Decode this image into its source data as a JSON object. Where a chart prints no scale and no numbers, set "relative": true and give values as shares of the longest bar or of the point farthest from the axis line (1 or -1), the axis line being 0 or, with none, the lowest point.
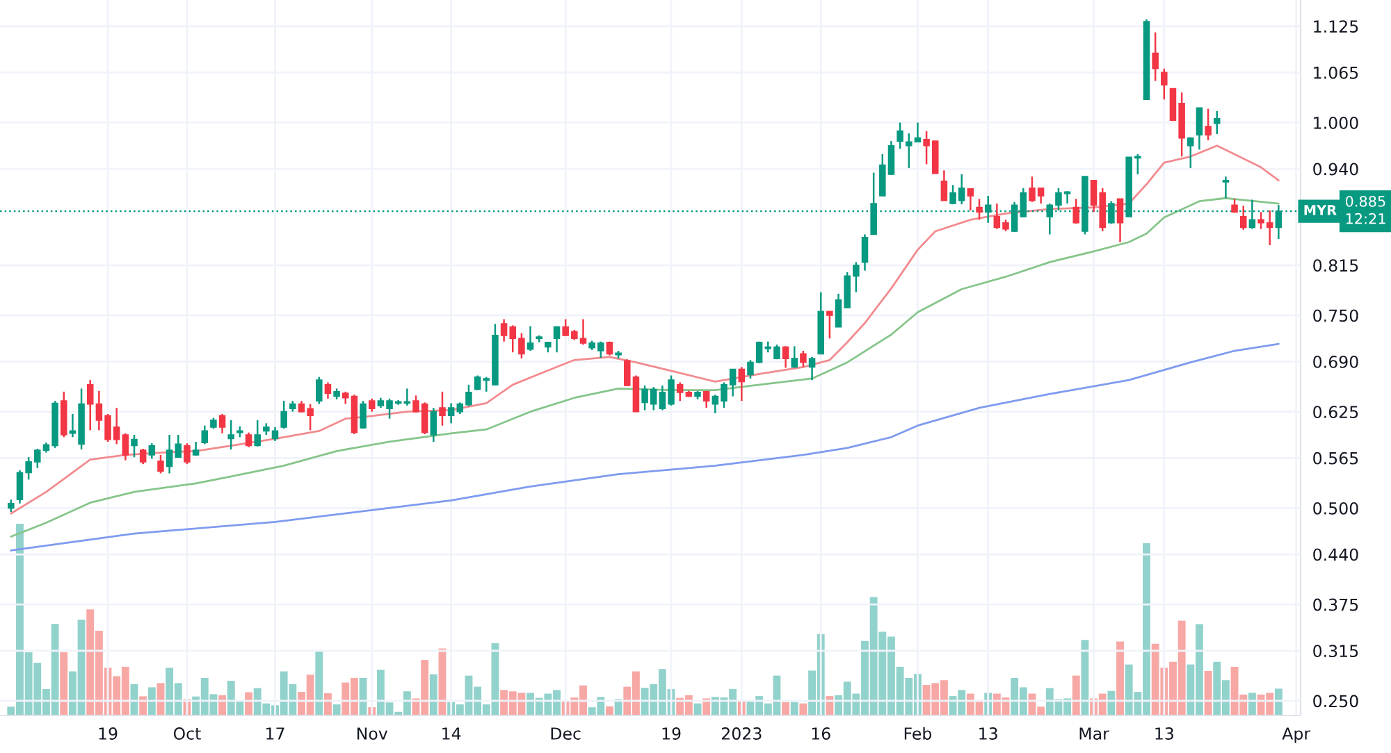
{
  "chart_data": [
    {
      "type": "candlestick",
      "categories": [
        null,
        null,
        null,
        null,
        null,
        null,
        null,
        null,
        null,
        null,
        null,
        "19",
        null,
        null,
        null,
        null,
        null,
        null,
        null,
        null,
        "Oct",
        null,
        null,
        null,
        null,
        null,
        null,
        null,
        null,
        null,
        "17",
        null,
        null,
        null,
        null,
        null,
        null,
        null,
        null,
        null,
        null,
        "Nov",
        null,
        null,
        null,
        null,
        null,
        null,
        null,
        null,
        "14",
        null,
        null,
        null,
        null,
        null,
        null,
        null,
        null,
        null,
        null,
        null,
        null,
        "Dec",
        null,
        null,
        null,
        null,
        null,
        null,
        null,
        null,
        null,
        null,
        null,
        "19",
        null,
        null,
        null,
        null,
        null,
        null,
        null,
        "2023",
        null,
        null,
        null,
        null,
        null,
        null,
        null,
        null,
        "16",
        null,
        null,
        null,
        null,
        null,
        null,
        null,
        null,
        null,
        null,
        "Feb",
        null,
        null,
        null,
        null,
        null,
        null,
        null,
        "13",
        null,
        null,
        null,
        null,
        null,
        null,
        null,
        null,
        null,
        null,
        null,
        "Mar",
        null,
        null,
        null,
        null,
        null,
        null,
        null,
        "13",
        null,
        null,
        null,
        null,
        null,
        null,
        null,
        null,
        null,
        null,
        null,
        null,
        null,
        null,
        "Apr"
      ],
      "ohlc": [
        [
          0.5,
          0.511,
          0.495,
          0.506
        ],
        [
          0.511,
          0.549,
          0.506,
          0.546
        ],
        [
          0.546,
          0.566,
          0.537,
          0.56
        ],
        [
          0.56,
          0.577,
          0.552,
          0.575
        ],
        [
          0.575,
          0.585,
          0.572,
          0.582
        ],
        [
          0.581,
          0.639,
          0.578,
          0.636
        ],
        [
          0.639,
          0.651,
          0.592,
          0.595
        ],
        [
          0.597,
          0.622,
          0.592,
          0.6
        ],
        [
          0.583,
          0.655,
          0.576,
          0.635
        ],
        [
          0.66,
          0.666,
          0.601,
          0.635
        ],
        [
          0.635,
          0.652,
          0.601,
          0.614
        ],
        [
          0.62,
          0.622,
          0.586,
          0.589
        ],
        [
          0.605,
          0.63,
          0.583,
          0.589
        ],
        [
          0.595,
          0.597,
          0.562,
          0.569
        ],
        [
          0.581,
          0.595,
          0.566,
          0.589
        ],
        [
          0.575,
          0.577,
          0.557,
          0.56
        ],
        [
          0.569,
          0.584,
          0.564,
          0.581
        ],
        [
          0.561,
          0.569,
          0.545,
          0.548
        ],
        [
          0.554,
          0.595,
          0.545,
          0.575
        ],
        [
          0.566,
          0.595,
          0.566,
          0.583
        ],
        [
          0.581,
          0.584,
          0.557,
          0.56
        ],
        [
          0.569,
          0.586,
          0.568,
          0.575
        ],
        [
          0.585,
          0.607,
          0.583,
          0.6
        ],
        [
          0.605,
          0.617,
          0.603,
          0.614
        ],
        [
          0.62,
          0.622,
          0.597,
          0.605
        ],
        [
          0.59,
          0.614,
          0.576,
          0.595
        ],
        [
          0.598,
          0.606,
          0.592,
          0.6
        ],
        [
          0.595,
          0.598,
          0.579,
          0.581
        ],
        [
          0.581,
          0.614,
          0.58,
          0.595
        ],
        [
          0.6,
          0.61,
          0.595,
          0.605
        ],
        [
          0.59,
          0.605,
          0.587,
          0.6
        ],
        [
          0.605,
          0.639,
          0.603,
          0.625
        ],
        [
          0.629,
          0.639,
          0.625,
          0.635
        ],
        [
          0.635,
          0.639,
          0.624,
          0.625
        ],
        [
          0.629,
          0.635,
          0.601,
          0.62
        ],
        [
          0.639,
          0.67,
          0.635,
          0.666
        ],
        [
          0.66,
          0.663,
          0.642,
          0.649
        ],
        [
          0.645,
          0.655,
          0.641,
          0.651
        ],
        [
          0.649,
          0.651,
          0.635,
          0.643
        ],
        [
          0.645,
          0.647,
          0.596,
          0.598
        ],
        [
          0.604,
          0.639,
          0.603,
          0.635
        ],
        [
          0.639,
          0.642,
          0.625,
          0.629
        ],
        [
          0.633,
          0.643,
          0.63,
          0.639
        ],
        [
          0.629,
          0.642,
          0.616,
          0.639
        ],
        [
          0.636,
          0.64,
          0.634,
          0.638
        ],
        [
          0.636,
          0.655,
          0.633,
          0.638
        ],
        [
          0.639,
          0.646,
          0.624,
          0.625
        ],
        [
          0.635,
          0.637,
          0.596,
          0.598
        ],
        [
          0.595,
          0.63,
          0.586,
          0.625
        ],
        [
          0.63,
          0.651,
          0.607,
          0.62
        ],
        [
          0.62,
          0.636,
          0.61,
          0.63
        ],
        [
          0.625,
          0.637,
          0.622,
          0.635
        ],
        [
          0.634,
          0.66,
          0.632,
          0.65
        ],
        [
          0.654,
          0.672,
          0.653,
          0.67
        ],
        [
          0.666,
          0.67,
          0.651,
          0.668
        ],
        [
          0.66,
          0.739,
          0.659,
          0.724
        ],
        [
          0.739,
          0.745,
          0.716,
          0.724
        ],
        [
          0.735,
          0.737,
          0.702,
          0.72
        ],
        [
          0.72,
          0.727,
          0.694,
          0.7
        ],
        [
          0.706,
          0.736,
          0.704,
          0.714
        ],
        [
          0.72,
          0.724,
          0.715,
          0.722
        ],
        [
          0.709,
          0.715,
          0.702,
          0.715
        ],
        [
          0.72,
          0.736,
          0.702,
          0.735
        ],
        [
          0.735,
          0.745,
          0.723,
          0.724
        ],
        [
          0.729,
          0.731,
          0.718,
          0.72
        ],
        [
          0.72,
          0.745,
          0.712,
          0.714
        ],
        [
          0.708,
          0.717,
          0.705,
          0.714
        ],
        [
          0.704,
          0.716,
          0.695,
          0.714
        ],
        [
          0.715,
          0.716,
          0.698,
          0.7
        ],
        [
          0.699,
          0.704,
          0.694,
          0.701
        ],
        [
          0.691,
          0.693,
          0.658,
          0.659
        ],
        [
          0.67,
          0.672,
          0.625,
          0.625
        ],
        [
          0.637,
          0.659,
          0.627,
          0.654
        ],
        [
          0.635,
          0.657,
          0.627,
          0.654
        ],
        [
          0.629,
          0.659,
          0.627,
          0.65
        ],
        [
          0.635,
          0.672,
          0.633,
          0.666
        ],
        [
          0.66,
          0.663,
          0.639,
          0.65
        ],
        [
          0.65,
          0.652,
          0.644,
          0.645
        ],
        [
          0.645,
          0.652,
          0.641,
          0.65
        ],
        [
          0.651,
          0.652,
          0.63,
          0.639
        ],
        [
          0.635,
          0.647,
          0.623,
          0.645
        ],
        [
          0.639,
          0.663,
          0.63,
          0.66
        ],
        [
          0.66,
          0.68,
          0.645,
          0.68
        ],
        [
          0.68,
          0.683,
          0.639,
          0.664
        ],
        [
          0.673,
          0.692,
          0.668,
          0.689
        ],
        [
          0.689,
          0.716,
          0.688,
          0.715
        ],
        [
          0.707,
          0.716,
          0.702,
          0.709
        ],
        [
          0.694,
          0.712,
          0.693,
          0.709
        ],
        [
          0.709,
          0.71,
          0.682,
          0.694
        ],
        [
          0.683,
          0.71,
          0.682,
          0.694
        ],
        [
          0.7,
          0.704,
          0.683,
          0.689
        ],
        [
          0.683,
          0.696,
          0.666,
          0.694
        ],
        [
          0.7,
          0.78,
          0.7,
          0.755
        ],
        [
          0.755,
          0.755,
          0.72,
          0.75
        ],
        [
          0.735,
          0.778,
          0.735,
          0.77
        ],
        [
          0.76,
          0.806,
          0.76,
          0.801
        ],
        [
          0.801,
          0.819,
          0.78,
          0.815
        ],
        [
          0.819,
          0.855,
          0.808,
          0.851
        ],
        [
          0.855,
          0.935,
          0.855,
          0.895
        ],
        [
          0.905,
          0.959,
          0.905,
          0.945
        ],
        [
          0.933,
          0.976,
          0.932,
          0.97
        ],
        [
          0.976,
          1.0,
          0.966,
          0.989
        ],
        [
          0.97,
          0.986,
          0.941,
          0.975
        ],
        [
          0.975,
          1.0,
          0.975,
          0.98
        ],
        [
          0.978,
          0.989,
          0.946,
          0.97
        ],
        [
          0.976,
          0.976,
          0.934,
          0.934
        ],
        [
          0.924,
          0.938,
          0.899,
          0.899
        ],
        [
          0.895,
          0.919,
          0.894,
          0.909
        ],
        [
          0.899,
          0.933,
          0.894,
          0.915
        ],
        [
          0.914,
          0.915,
          0.886,
          0.905
        ],
        [
          0.89,
          0.901,
          0.874,
          0.884
        ],
        [
          0.884,
          0.905,
          0.87,
          0.893
        ],
        [
          0.878,
          0.895,
          0.862,
          0.864
        ],
        [
          0.87,
          0.874,
          0.859,
          0.862
        ],
        [
          0.859,
          0.897,
          0.858,
          0.893
        ],
        [
          0.878,
          0.915,
          0.877,
          0.909
        ],
        [
          0.915,
          0.93,
          0.897,
          0.899
        ],
        [
          0.915,
          0.915,
          0.895,
          0.905
        ],
        [
          0.878,
          0.895,
          0.855,
          0.893
        ],
        [
          0.893,
          0.915,
          0.886,
          0.909
        ],
        [
          0.908,
          0.911,
          0.895,
          0.91
        ],
        [
          0.89,
          0.901,
          0.869,
          0.87
        ],
        [
          0.859,
          0.93,
          0.855,
          0.93
        ],
        [
          0.925,
          0.925,
          0.884,
          0.893
        ],
        [
          0.909,
          0.915,
          0.859,
          0.864
        ],
        [
          0.87,
          0.898,
          0.869,
          0.895
        ],
        [
          0.901,
          0.901,
          0.845,
          0.87
        ],
        [
          0.878,
          0.955,
          0.878,
          0.955
        ],
        [
          0.954,
          0.959,
          0.933,
          0.956
        ],
        [
          1.03,
          1.134,
          1.03,
          1.131
        ],
        [
          1.09,
          1.117,
          1.054,
          1.07
        ],
        [
          1.065,
          1.07,
          1.03,
          1.049
        ],
        [
          1.044,
          1.044,
          1.002,
          1.003
        ],
        [
          1.025,
          1.039,
          0.956,
          0.98
        ],
        [
          0.97,
          0.98,
          0.941,
          0.98
        ],
        [
          0.984,
          1.019,
          0.965,
          1.019
        ],
        [
          0.995,
          1.018,
          0.977,
          0.984
        ],
        [
          0.999,
          1.015,
          0.985,
          1.005
        ],
        [
          0.923,
          0.93,
          0.902,
          0.925
        ],
        [
          0.893,
          0.901,
          0.883,
          0.884
        ],
        [
          0.878,
          0.892,
          0.861,
          0.864
        ],
        [
          0.864,
          0.9,
          0.862,
          0.874
        ],
        [
          0.874,
          0.884,
          0.862,
          0.87
        ],
        [
          0.87,
          0.886,
          0.841,
          0.864
        ],
        [
          0.864,
          0.893,
          0.849,
          0.885
        ],
        null,
        null
      ],
      "colors": [
        "#089981",
        "#089981",
        "#089981",
        "#089981",
        "#089981",
        "#089981",
        "#f23645",
        "#089981",
        "#089981",
        "#f23645",
        "#f23645",
        "#f23645",
        "#f23645",
        "#f23645",
        "#089981",
        "#f23645",
        "#089981",
        "#f23645",
        "#089981",
        "#089981",
        "#f23645",
        "#089981",
        "#089981",
        "#089981",
        "#f23645",
        "#089981",
        "#089981",
        "#f23645",
        "#089981",
        "#089981",
        "#089981",
        "#089981",
        "#089981",
        "#f23645",
        "#f23645",
        "#089981",
        "#f23645",
        "#089981",
        "#f23645",
        "#f23645",
        "#089981",
        "#f23645",
        "#089981",
        "#089981",
        "#089981",
        "#089981",
        "#f23645",
        "#f23645",
        "#089981",
        "#f23645",
        "#089981",
        "#089981",
        "#089981",
        "#089981",
        "#089981",
        "#089981",
        "#f23645",
        "#f23645",
        "#f23645",
        "#089981",
        "#089981",
        "#089981",
        "#089981",
        "#f23645",
        "#f23645",
        "#f23645",
        "#089981",
        "#089981",
        "#f23645",
        "#089981",
        "#f23645",
        "#f23645",
        "#089981",
        "#089981",
        "#089981",
        "#089981",
        "#f23645",
        "#f23645",
        "#089981",
        "#f23645",
        "#089981",
        "#089981",
        "#089981",
        "#f23645",
        "#089981",
        "#089981",
        "#089981",
        "#089981",
        "#f23645",
        "#089981",
        "#f23645",
        "#089981",
        "#089981",
        "#f23645",
        "#089981",
        "#089981",
        "#089981",
        "#089981",
        "#089981",
        "#089981",
        "#089981",
        "#089981",
        "#089981",
        "#089981",
        "#f23645",
        "#f23645",
        "#f23645",
        "#089981",
        "#089981",
        "#f23645",
        "#f23645",
        "#089981",
        "#f23645",
        "#f23645",
        "#089981",
        "#089981",
        "#f23645",
        "#f23645",
        "#089981",
        "#089981",
        "#089981",
        "#f23645",
        "#089981",
        "#f23645",
        "#f23645",
        "#089981",
        "#f23645",
        "#089981",
        "#089981",
        "#089981",
        "#f23645",
        "#f23645",
        "#f23645",
        "#f23645",
        "#089981",
        "#089981",
        "#f23645",
        "#089981",
        "#089981",
        "#f23645",
        "#f23645",
        "#089981",
        "#f23645",
        "#f23645",
        "#089981",
        null,
        null
      ],
      "series": [
        {
          "type": "line",
          "color": "#f28b8f",
          "values": [
            0.493,
            null,
            null,
            null,
            0.521,
            null,
            null,
            null,
            null,
            0.563,
            null,
            null,
            null,
            0.569,
            null,
            null,
            null,
            0.572,
            null,
            null,
            null,
            0.574,
            null,
            null,
            null,
            0.581,
            null,
            null,
            null,
            null,
            0.59,
            null,
            null,
            null,
            null,
            0.6,
            null,
            null,
            0.616,
            null,
            0.618,
            null,
            null,
            null,
            null,
            0.625,
            null,
            null,
            null,
            null,
            0.627,
            null,
            null,
            null,
            0.636,
            null,
            null,
            0.66,
            null,
            null,
            null,
            null,
            0.683,
            null,
            0.692,
            null,
            null,
            null,
            0.696,
            null,
            null,
            0.689,
            null,
            null,
            null,
            0.678,
            null,
            null,
            null,
            null,
            0.664,
            null,
            null,
            null,
            null,
            0.674,
            null,
            null,
            null,
            null,
            0.683,
            null,
            null,
            0.692,
            null,
            0.715,
            null,
            0.74,
            null,
            null,
            0.785,
            null,
            null,
            0.835,
            null,
            0.859,
            null,
            null,
            null,
            0.874,
            null,
            null,
            null,
            0.882,
            null,
            null,
            null,
            null,
            0.888,
            null,
            null,
            null,
            null,
            0.89,
            null,
            null,
            null,
            0.895,
            null,
            0.92,
            null,
            0.948,
            null,
            null,
            0.956,
            null,
            null,
            0.97,
            null,
            0.959,
            null,
            null,
            0.942,
            null,
            0.925,
            null,
            null
          ]
        },
        {
          "type": "line",
          "color": "#86c58a",
          "values": [
            0.463,
            null,
            null,
            null,
            0.481,
            null,
            null,
            null,
            null,
            0.507,
            null,
            null,
            null,
            null,
            0.521,
            null,
            null,
            null,
            null,
            null,
            null,
            0.532,
            null,
            null,
            null,
            0.541,
            null,
            null,
            null,
            null,
            null,
            0.555,
            null,
            null,
            null,
            null,
            null,
            0.574,
            null,
            null,
            null,
            null,
            null,
            0.586,
            null,
            null,
            null,
            null,
            null,
            null,
            0.597,
            null,
            null,
            null,
            0.602,
            null,
            null,
            null,
            null,
            0.625,
            null,
            null,
            null,
            null,
            0.643,
            null,
            null,
            null,
            null,
            0.655,
            null,
            null,
            null,
            null,
            null,
            0.653,
            null,
            null,
            null,
            null,
            0.653,
            null,
            null,
            null,
            null,
            0.66,
            null,
            null,
            null,
            null,
            null,
            0.668,
            null,
            null,
            null,
            0.689,
            null,
            null,
            null,
            null,
            0.725,
            null,
            null,
            0.754,
            null,
            null,
            null,
            null,
            0.784,
            null,
            null,
            null,
            null,
            0.8,
            null,
            null,
            null,
            null,
            0.819,
            null,
            null,
            null,
            null,
            0.833,
            null,
            null,
            null,
            0.845,
            null,
            0.856,
            null,
            0.877,
            null,
            null,
            null,
            0.898,
            null,
            null,
            0.902,
            null,
            null,
            null,
            null,
            null,
            0.895,
            null,
            null
          ]
        },
        {
          "type": "line",
          "color": "#7e9bef",
          "values": [
            0.445,
            null,
            null,
            null,
            null,
            null,
            null,
            null,
            null,
            null,
            null,
            null,
            null,
            null,
            0.467,
            null,
            null,
            null,
            null,
            null,
            null,
            null,
            null,
            null,
            null,
            null,
            null,
            null,
            null,
            null,
            0.482,
            null,
            null,
            null,
            null,
            null,
            null,
            null,
            null,
            null,
            null,
            null,
            null,
            null,
            null,
            null,
            null,
            null,
            null,
            null,
            0.51,
            null,
            null,
            null,
            null,
            null,
            null,
            null,
            null,
            0.528,
            null,
            null,
            null,
            null,
            null,
            null,
            null,
            null,
            null,
            0.544,
            null,
            null,
            null,
            null,
            null,
            null,
            null,
            null,
            null,
            null,
            0.555,
            null,
            null,
            null,
            null,
            null,
            null,
            null,
            null,
            null,
            0.569,
            null,
            null,
            null,
            null,
            0.578,
            null,
            null,
            null,
            null,
            0.592,
            null,
            null,
            0.607,
            null,
            null,
            null,
            null,
            null,
            null,
            0.63,
            null,
            null,
            null,
            null,
            null,
            null,
            null,
            0.648,
            null,
            null,
            null,
            null,
            null,
            null,
            null,
            null,
            0.666,
            null,
            null,
            null,
            null,
            null,
            null,
            0.689,
            null,
            null,
            null,
            null,
            0.704,
            null,
            null,
            null,
            null,
            0.713,
            null,
            null
          ]
        }
      ],
      "ylim": [
        0.231,
        1.159
      ],
      "yticks": [
        {
          "value": 1.125,
          "label": "1.125"
        },
        {
          "value": 1.065,
          "label": "1.065"
        },
        {
          "value": 1.0,
          "label": "1.000"
        },
        {
          "value": 0.94,
          "label": "0.940"
        },
        {
          "value": 0.815,
          "label": "0.815"
        },
        {
          "value": 0.75,
          "label": "0.750"
        },
        {
          "value": 0.69,
          "label": "0.690"
        },
        {
          "value": 0.625,
          "label": "0.625"
        },
        {
          "value": 0.565,
          "label": "0.565"
        },
        {
          "value": 0.5,
          "label": "0.500"
        },
        {
          "value": 0.44,
          "label": "0.440"
        },
        {
          "value": 0.375,
          "label": "0.375"
        },
        {
          "value": 0.315,
          "label": "0.315"
        },
        {
          "value": 0.25,
          "label": "0.250"
        }
      ],
      "grid": true,
      "legend": false,
      "ref_lines": [
        {
          "axis": "y",
          "value": 0.885,
          "label": "MYR",
          "color": "#089981",
          "line_style": "dotted"
        }
      ],
      "annotations": [
        "0.885",
        "12:21"
      ]
    },
    {
      "type": "bar",
      "relative": true,
      "values": [
        0.046,
        1,
        0.33,
        0.275,
        0.138,
        0.478,
        0.33,
        0.23,
        0.5,
        0.553,
        0.442,
        0.249,
        0.205,
        0.254,
        0.164,
        0.1,
        0.147,
        0.169,
        0.249,
        0.169,
        0.085,
        0.099,
        0.196,
        0.111,
        0.106,
        0.181,
        0.077,
        0.121,
        0.143,
        0.063,
        0.053,
        0.23,
        0.164,
        0.123,
        0.213,
        0.34,
        0.116,
        0.058,
        0.172,
        0.196,
        0.196,
        0.043,
        0.239,
        0.068,
        0.019,
        0.126,
        0.089,
        0.29,
        0.215,
        0.35,
        0.07,
        0.058,
        0.208,
        0.15,
        0.058,
        0.377,
        0.133,
        0.126,
        0.118,
        0.118,
        0.092,
        0.114,
        0.133,
        0.08,
        0.094,
        0.157,
        0.043,
        0.097,
        0.048,
        0.085,
        0.15,
        0.23,
        0.145,
        0.164,
        0.242,
        0.138,
        0.092,
        0.106,
        0.063,
        0.089,
        0.097,
        0.094,
        0.138,
        0.075,
        0.08,
        0.101,
        0.063,
        0.208,
        0.07,
        0.07,
        0.063,
        0.234,
        0.425,
        0.101,
        0.106,
        0.176,
        0.114,
        0.389,
        0.618,
        0.437,
        0.411,
        0.254,
        0.196,
        0.217,
        0.159,
        0.169,
        0.184,
        0.101,
        0.133,
        0.114,
        0.08,
        0.118,
        0.114,
        0.094,
        0.196,
        0.147,
        0.114,
        0.046,
        0.143,
        0.085,
        0.089,
        0.208,
        0.394,
        0.089,
        0.114,
        0.128,
        0.386,
        0.266,
        0.123,
        0.899,
        0.374,
        0.249,
        0.28,
        0.495,
        0.266,
        0.476,
        0.232,
        0.28,
        0.184,
        0.254,
        0.109,
        0.118,
        0.109,
        0.118,
        0.14,
        null,
        null
      ],
      "colors": [
        "#92d2cc",
        "#92d2cc",
        "#92d2cc",
        "#92d2cc",
        "#92d2cc",
        "#92d2cc",
        "#f7a8a5",
        "#92d2cc",
        "#92d2cc",
        "#f7a8a5",
        "#f7a8a5",
        "#f7a8a5",
        "#f7a8a5",
        "#f7a8a5",
        "#92d2cc",
        "#f7a8a5",
        "#92d2cc",
        "#f7a8a5",
        "#92d2cc",
        "#92d2cc",
        "#f7a8a5",
        "#92d2cc",
        "#92d2cc",
        "#92d2cc",
        "#f7a8a5",
        "#92d2cc",
        "#92d2cc",
        "#f7a8a5",
        "#92d2cc",
        "#92d2cc",
        "#92d2cc",
        "#92d2cc",
        "#92d2cc",
        "#f7a8a5",
        "#f7a8a5",
        "#92d2cc",
        "#f7a8a5",
        "#92d2cc",
        "#f7a8a5",
        "#f7a8a5",
        "#92d2cc",
        "#f7a8a5",
        "#92d2cc",
        "#92d2cc",
        "#92d2cc",
        "#92d2cc",
        "#f7a8a5",
        "#f7a8a5",
        "#92d2cc",
        "#f7a8a5",
        "#92d2cc",
        "#92d2cc",
        "#92d2cc",
        "#92d2cc",
        "#92d2cc",
        "#92d2cc",
        "#f7a8a5",
        "#f7a8a5",
        "#f7a8a5",
        "#92d2cc",
        "#92d2cc",
        "#92d2cc",
        "#92d2cc",
        "#f7a8a5",
        "#f7a8a5",
        "#f7a8a5",
        "#92d2cc",
        "#92d2cc",
        "#f7a8a5",
        "#92d2cc",
        "#f7a8a5",
        "#f7a8a5",
        "#92d2cc",
        "#92d2cc",
        "#92d2cc",
        "#92d2cc",
        "#f7a8a5",
        "#f7a8a5",
        "#92d2cc",
        "#f7a8a5",
        "#92d2cc",
        "#92d2cc",
        "#92d2cc",
        "#f7a8a5",
        "#92d2cc",
        "#92d2cc",
        "#92d2cc",
        "#92d2cc",
        "#f7a8a5",
        "#92d2cc",
        "#f7a8a5",
        "#92d2cc",
        "#92d2cc",
        "#f7a8a5",
        "#92d2cc",
        "#92d2cc",
        "#92d2cc",
        "#92d2cc",
        "#92d2cc",
        "#92d2cc",
        "#92d2cc",
        "#92d2cc",
        "#92d2cc",
        "#92d2cc",
        "#f7a8a5",
        "#f7a8a5",
        "#f7a8a5",
        "#92d2cc",
        "#92d2cc",
        "#f7a8a5",
        "#f7a8a5",
        "#92d2cc",
        "#f7a8a5",
        "#f7a8a5",
        "#92d2cc",
        "#92d2cc",
        "#f7a8a5",
        "#f7a8a5",
        "#92d2cc",
        "#92d2cc",
        "#92d2cc",
        "#f7a8a5",
        "#92d2cc",
        "#f7a8a5",
        "#f7a8a5",
        "#92d2cc",
        "#f7a8a5",
        "#92d2cc",
        "#92d2cc",
        "#92d2cc",
        "#f7a8a5",
        "#f7a8a5",
        "#f7a8a5",
        "#f7a8a5",
        "#92d2cc",
        "#92d2cc",
        "#f7a8a5",
        "#92d2cc",
        "#92d2cc",
        "#f7a8a5",
        "#f7a8a5",
        "#92d2cc",
        "#f7a8a5",
        "#f7a8a5",
        "#92d2cc",
        null,
        null
      ]
    }
  ]
}
